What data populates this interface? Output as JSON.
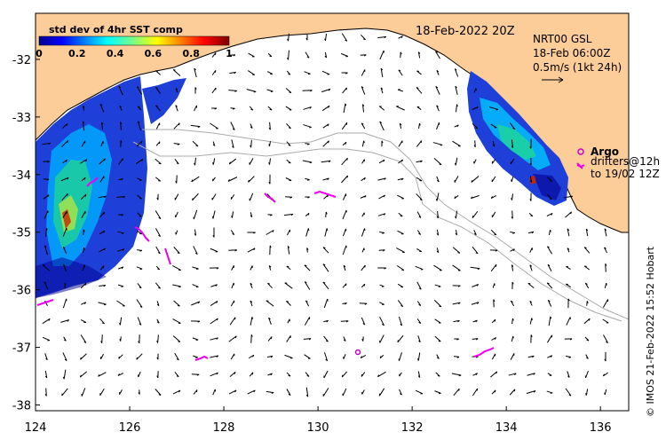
{
  "map": {
    "date_label": "18-Feb-2022 20Z",
    "product_line1": "NRT00 GSL",
    "product_line2": "18-Feb 06:00Z",
    "vector_scale": "0.5m/s (1kt 24h)",
    "argo_label": "Argo",
    "drifters_line1": "drifters@12h",
    "drifters_line2": "to 19/02 12Z",
    "credit": "© IMOS 21-Feb-2022 15:52 Hobart",
    "colorbar": {
      "title": "std dev of 4hr SST comp",
      "min": 0,
      "max": 1,
      "tick_labels": [
        "0",
        "0.2",
        "0.4",
        "0.6",
        "0.8",
        "1"
      ]
    },
    "x_axis_ticks": [
      "124",
      "126",
      "128",
      "130",
      "132",
      "134",
      "136"
    ],
    "y_axis_ticks": [
      "-32",
      "-33",
      "-34",
      "-35",
      "-36",
      "-37",
      "-38"
    ],
    "lon_range": [
      124,
      136.6
    ],
    "lat_range": [
      -38.1,
      -31.2
    ],
    "colors": {
      "land": "#fccc99",
      "drifter": "#ee00ee",
      "argo": "#cc00cc",
      "depth_contour": "#aaaaaa"
    }
  }
}
